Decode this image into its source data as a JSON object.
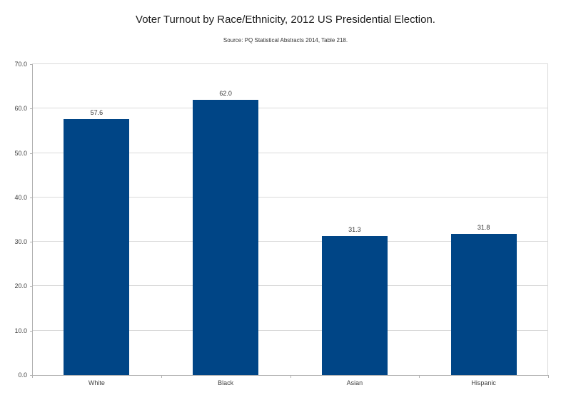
{
  "chart_data": {
    "type": "bar",
    "title": "Voter Turnout by Race/Ethnicity, 2012 US Presidential Election.",
    "source": "Source: PQ Statistical Abstracts 2014, Table 218.",
    "categories": [
      "White",
      "Black",
      "Asian",
      "Hispanic"
    ],
    "values": [
      57.6,
      62.0,
      31.3,
      31.8
    ],
    "value_labels": [
      "57.6",
      "62.0",
      "31.3",
      "31.8"
    ],
    "ylim": [
      0,
      70
    ],
    "ytick_step": 10,
    "ytick_labels": [
      "0.0",
      "10.0",
      "20.0",
      "30.0",
      "40.0",
      "50.0",
      "60.0",
      "70.0"
    ],
    "xlabel": "",
    "ylabel": "",
    "grid": "horizontal",
    "legend": "none",
    "colors": {
      "bar": "#004586",
      "gridline": "#d9d9d9",
      "axis": "#b0b0b0",
      "text": "#333333"
    }
  }
}
